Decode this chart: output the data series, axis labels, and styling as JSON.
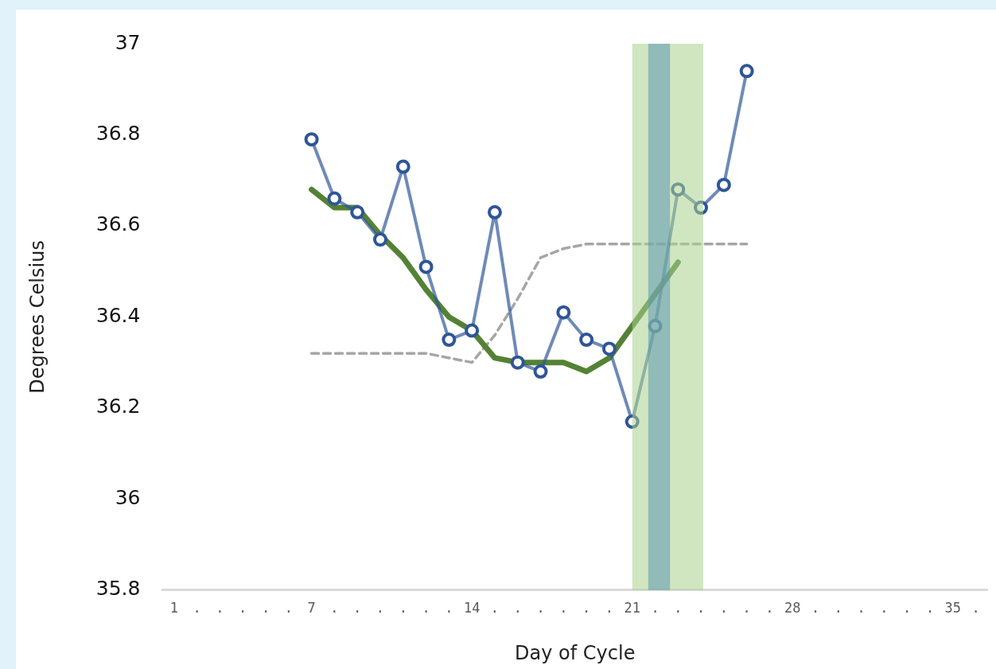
{
  "chart_data": {
    "type": "line",
    "xlabel": "Day of Cycle",
    "ylabel": "Degrees Celsius",
    "xlim": [
      0.5,
      36.5
    ],
    "xticks": [
      1,
      {
        "value": 2,
        "label": "."
      },
      {
        "value": 3,
        "label": "."
      },
      {
        "value": 4,
        "label": "."
      },
      {
        "value": 5,
        "label": "."
      },
      {
        "value": 6,
        "label": "."
      },
      7,
      {
        "value": 8,
        "label": "."
      },
      {
        "value": 9,
        "label": "."
      },
      {
        "value": 10,
        "label": "."
      },
      {
        "value": 11,
        "label": "."
      },
      {
        "value": 12,
        "label": "."
      },
      {
        "value": 13,
        "label": "."
      },
      14,
      {
        "value": 15,
        "label": "."
      },
      {
        "value": 16,
        "label": "."
      },
      {
        "value": 17,
        "label": "."
      },
      {
        "value": 18,
        "label": "."
      },
      {
        "value": 19,
        "label": "."
      },
      {
        "value": 20,
        "label": "."
      },
      21,
      {
        "value": 22,
        "label": "."
      },
      {
        "value": 23,
        "label": "."
      },
      {
        "value": 24,
        "label": "."
      },
      {
        "value": 25,
        "label": "."
      },
      {
        "value": 26,
        "label": "."
      },
      {
        "value": 27,
        "label": "."
      },
      28,
      {
        "value": 29,
        "label": "."
      },
      {
        "value": 30,
        "label": "."
      },
      {
        "value": 31,
        "label": "."
      },
      {
        "value": 32,
        "label": "."
      },
      {
        "value": 33,
        "label": "."
      },
      {
        "value": 34,
        "label": "."
      },
      35,
      {
        "value": 36,
        "label": "."
      }
    ],
    "ylim": [
      35.8,
      37
    ],
    "yticks": [
      35.8,
      36,
      36.2,
      36.4,
      36.6,
      36.8,
      37
    ],
    "grid": false,
    "legend": false,
    "bands": [
      {
        "axis": "x",
        "from": 21,
        "to": 24.1,
        "color": "#a9d18e"
      },
      {
        "axis": "x",
        "from": 21.7,
        "to": 22.65,
        "color": "#5b97b1"
      }
    ],
    "series": [
      {
        "color": "#2f5597",
        "marker": "circle",
        "x": [
          7,
          8,
          9,
          10,
          11,
          12,
          13,
          14,
          15,
          16,
          17,
          18,
          19,
          20,
          21,
          22,
          23,
          24,
          25,
          26
        ],
        "values": [
          36.79,
          36.66,
          36.63,
          36.57,
          36.73,
          36.51,
          36.35,
          36.37,
          36.63,
          36.3,
          36.28,
          36.41,
          36.35,
          36.33,
          36.17,
          36.38,
          36.68,
          36.64,
          36.69,
          36.94
        ]
      },
      {
        "color": "#548235",
        "marker": "none",
        "x": [
          7,
          8,
          9,
          10,
          11,
          12,
          13,
          14,
          15,
          16,
          17,
          18,
          19,
          20,
          21,
          22,
          23
        ],
        "values": [
          36.68,
          36.64,
          36.64,
          36.58,
          36.53,
          36.46,
          36.4,
          36.37,
          36.31,
          36.3,
          36.3,
          36.3,
          36.28,
          36.31,
          36.38,
          36.45,
          36.52
        ]
      },
      {
        "color": "#a6a6a6",
        "marker": "none",
        "line_style": "dashed",
        "x": [
          7,
          8,
          9,
          10,
          11,
          12,
          13,
          14,
          15,
          16,
          17,
          18,
          19,
          20,
          21,
          22,
          23,
          24,
          25,
          26
        ],
        "values": [
          36.32,
          36.32,
          36.32,
          36.32,
          36.32,
          36.32,
          36.31,
          36.3,
          36.36,
          36.44,
          36.53,
          36.55,
          36.56,
          36.56,
          36.56,
          36.56,
          36.56,
          36.56,
          36.56,
          36.56
        ]
      }
    ]
  }
}
